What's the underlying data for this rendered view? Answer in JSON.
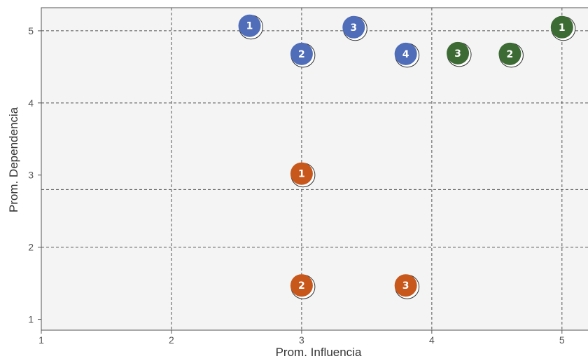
{
  "chart_data": {
    "type": "scatter",
    "title": "",
    "xlabel": "Prom. Influencia",
    "ylabel": "Prom. Dependencia",
    "xlim": [
      1,
      5.2
    ],
    "ylim": [
      0.85,
      5.32
    ],
    "xticks": [
      1,
      2,
      3,
      4,
      5
    ],
    "yticks": [
      1,
      2,
      3,
      4,
      5
    ],
    "reference_lines": {
      "x": [
        2,
        3,
        4,
        5
      ],
      "y": [
        2,
        2.8,
        4,
        5
      ]
    },
    "grid": true,
    "legend": "none",
    "colors": {
      "blue": "#4f6db8",
      "orange": "#c8571b",
      "green": "#3d6b34"
    },
    "series": [
      {
        "color": "blue",
        "points": [
          {
            "label": "1",
            "x": 2.6,
            "y": 5.07
          },
          {
            "label": "3",
            "x": 3.4,
            "y": 5.05
          },
          {
            "label": "2",
            "x": 3.0,
            "y": 4.68
          },
          {
            "label": "4",
            "x": 3.8,
            "y": 4.68
          }
        ]
      },
      {
        "color": "green",
        "points": [
          {
            "label": "1",
            "x": 5.0,
            "y": 5.05
          },
          {
            "label": "3",
            "x": 4.2,
            "y": 4.69
          },
          {
            "label": "2",
            "x": 4.6,
            "y": 4.68
          }
        ]
      },
      {
        "color": "orange",
        "points": [
          {
            "label": "1",
            "x": 3.0,
            "y": 3.02
          },
          {
            "label": "2",
            "x": 3.0,
            "y": 1.47
          },
          {
            "label": "3",
            "x": 3.8,
            "y": 1.47
          }
        ]
      }
    ]
  }
}
